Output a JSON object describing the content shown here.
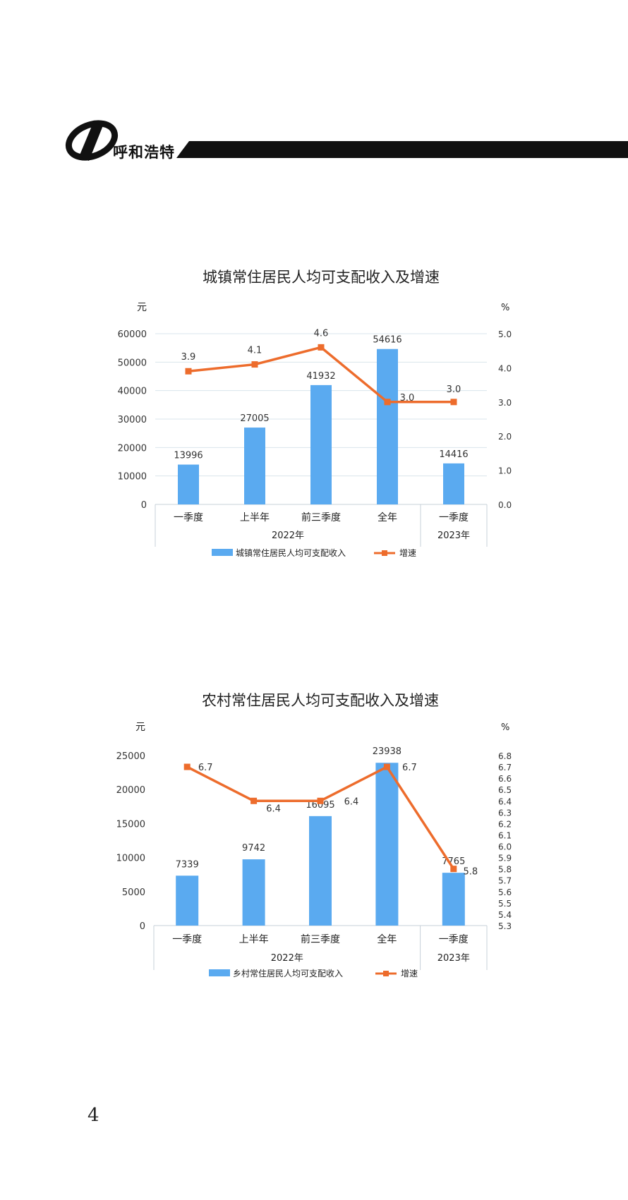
{
  "header": {
    "brand": "呼和浩特"
  },
  "page_number": "4",
  "chart_data": [
    {
      "type": "bar",
      "title": "城镇常住居民人均可支配收入及增速",
      "ylabel_left": "元",
      "ylabel_right": "%",
      "categories": [
        "一季度",
        "上半年",
        "前三季度",
        "全年",
        "一季度"
      ],
      "groups": [
        {
          "label": "2022年",
          "span": 4
        },
        {
          "label": "2023年",
          "span": 1
        }
      ],
      "ylim": [
        0,
        60000
      ],
      "yticks": [
        0,
        10000,
        20000,
        30000,
        40000,
        50000,
        60000
      ],
      "y2lim": [
        0.0,
        5.0
      ],
      "y2ticks": [
        "0.0",
        "1.0",
        "2.0",
        "3.0",
        "4.0",
        "5.0"
      ],
      "grid": true,
      "legend_position": "bottom",
      "series": [
        {
          "name": "城镇常住居民人均可支配收入",
          "type": "bar",
          "axis": "left",
          "color": "#5aaaf0",
          "values": [
            13996,
            27005,
            41932,
            54616,
            14416
          ],
          "labels": [
            "13996",
            "27005",
            "41932",
            "54616",
            "14416"
          ]
        },
        {
          "name": "增速",
          "type": "line",
          "axis": "right",
          "color": "#ed6c2c",
          "values": [
            3.9,
            4.1,
            4.6,
            3.0,
            3.0
          ],
          "labels": [
            "3.9",
            "4.1",
            "4.6",
            "3.0",
            "3.0"
          ]
        }
      ]
    },
    {
      "type": "bar",
      "title": "农村常住居民人均可支配收入及增速",
      "ylabel_left": "元",
      "ylabel_right": "%",
      "categories": [
        "一季度",
        "上半年",
        "前三季度",
        "全年",
        "一季度"
      ],
      "groups": [
        {
          "label": "2022年",
          "span": 4
        },
        {
          "label": "2023年",
          "span": 1
        }
      ],
      "ylim": [
        0,
        25000
      ],
      "yticks": [
        0,
        5000,
        10000,
        15000,
        20000,
        25000
      ],
      "y2lim": [
        5.3,
        6.8
      ],
      "y2ticks": [
        "5.3",
        "5.4",
        "5.5",
        "5.6",
        "5.7",
        "5.8",
        "5.9",
        "6.0",
        "6.1",
        "6.2",
        "6.3",
        "6.4",
        "6.5",
        "6.6",
        "6.7",
        "6.8"
      ],
      "grid": false,
      "legend_position": "bottom",
      "series": [
        {
          "name": "乡村常住居民人均可支配收入",
          "type": "bar",
          "axis": "left",
          "color": "#5aaaf0",
          "values": [
            7339,
            9742,
            16095,
            23938,
            7765
          ],
          "labels": [
            "7339",
            "9742",
            "16095",
            "23938",
            "7765"
          ]
        },
        {
          "name": "增速",
          "type": "line",
          "axis": "right",
          "color": "#ed6c2c",
          "values": [
            6.7,
            6.4,
            6.4,
            6.7,
            5.8
          ],
          "labels": [
            "6.7",
            "6.4",
            "6.4",
            "6.7",
            "5.8"
          ]
        }
      ]
    }
  ]
}
